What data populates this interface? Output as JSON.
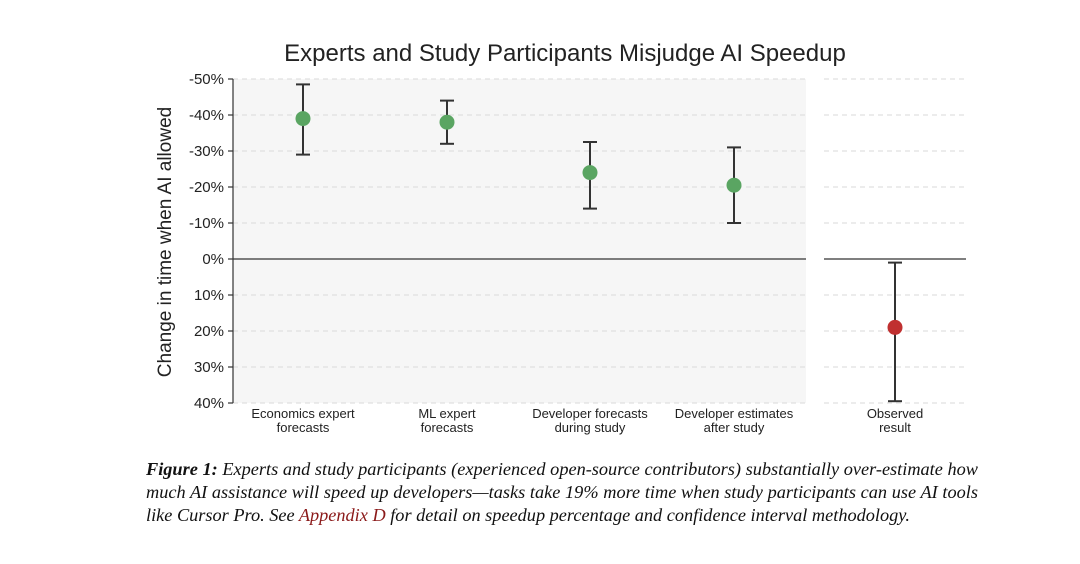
{
  "chart_data": {
    "type": "errorbar",
    "title": "Experts and Study Participants Misjudge AI Speedup",
    "ylabel": "Change in time when AI allowed",
    "ylim": [
      -50,
      40
    ],
    "yticks": [
      -50,
      -40,
      -30,
      -20,
      -10,
      0,
      10,
      20,
      30,
      40
    ],
    "ytick_labels": [
      "-50%",
      "-40%",
      "-30%",
      "-20%",
      "-10%",
      "0%",
      "10%",
      "20%",
      "30%",
      "40%"
    ],
    "y_inverted": true,
    "panels": [
      {
        "name": "forecasts",
        "background": "#f6f6f6",
        "points": [
          {
            "label_lines": [
              "Economics expert",
              "forecasts"
            ],
            "value": -39,
            "ci": [
              -48.5,
              -29
            ],
            "color": "#5aa562"
          },
          {
            "label_lines": [
              "ML expert",
              "forecasts"
            ],
            "value": -38,
            "ci": [
              -44,
              -32
            ],
            "color": "#5aa562"
          },
          {
            "label_lines": [
              "Developer forecasts",
              "during study"
            ],
            "value": -24,
            "ci": [
              -32.5,
              -14
            ],
            "color": "#5aa562"
          },
          {
            "label_lines": [
              "Developer estimates",
              "after study"
            ],
            "value": -20.5,
            "ci": [
              -31,
              -10
            ],
            "color": "#5aa562"
          }
        ]
      },
      {
        "name": "observed",
        "background": "#ffffff",
        "points": [
          {
            "label_lines": [
              "Observed",
              "result"
            ],
            "value": 19,
            "ci": [
              1,
              39.5
            ],
            "color": "#c03030"
          }
        ]
      }
    ],
    "reference_line": 0
  },
  "caption": {
    "lead": "Figure 1:",
    "text_before_link": " Experts and study participants (experienced open-source contributors) substantially over-estimate how much AI assistance will speed up developers—tasks take 19% more time when study participants can use AI tools like Cursor Pro. See ",
    "link_text": "Appendix D",
    "text_after_link": " for detail on speedup percentage and confidence interval methodology."
  }
}
